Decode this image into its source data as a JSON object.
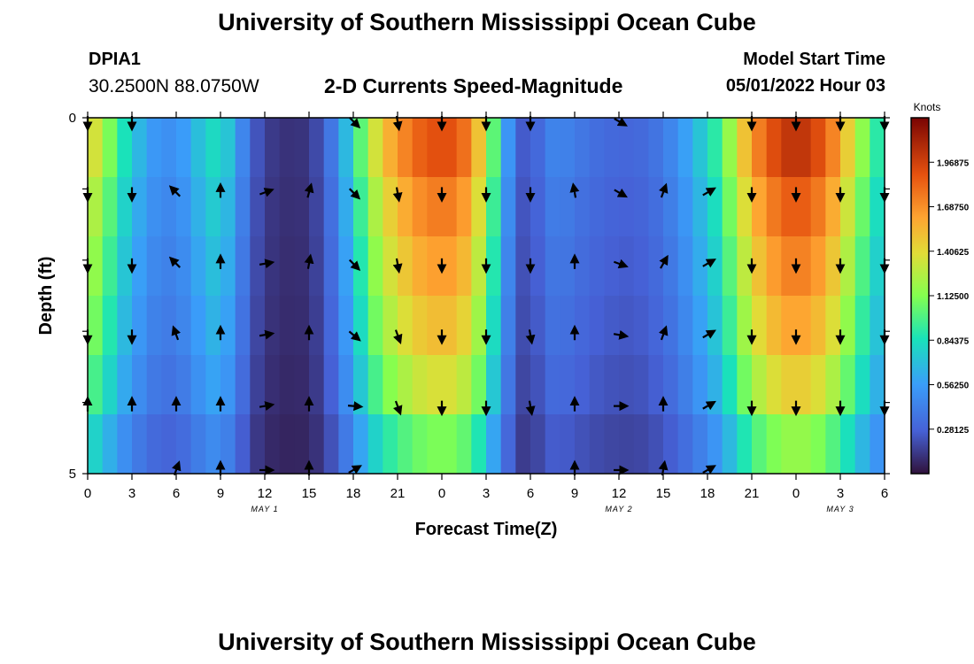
{
  "page": {
    "title": "University of Southern Mississippi Ocean Cube",
    "station": "DPIA1",
    "coords": "30.2500N  88.0750W",
    "subtitle": "2-D Currents Speed-Magnitude",
    "model_start_label": "Model Start Time",
    "model_start_value": "05/01/2022 Hour 03",
    "footer_title": "University of Southern Mississippi Ocean Cube"
  },
  "chart_data": {
    "type": "heatmap",
    "title": "2-D Currents Speed-Magnitude",
    "xlabel": "Forecast Time(Z)",
    "ylabel": "Depth (ft)",
    "x_ticks": [
      "0",
      "3",
      "6",
      "9",
      "12",
      "15",
      "18",
      "21",
      "0",
      "3",
      "6",
      "9",
      "12",
      "15",
      "18",
      "21",
      "0",
      "3",
      "6"
    ],
    "x_range_hours": [
      0,
      54
    ],
    "date_labels": [
      {
        "label": "MAY 1",
        "hour": 12
      },
      {
        "label": "MAY 2",
        "hour": 36
      },
      {
        "label": "MAY 3",
        "hour": 51
      }
    ],
    "y_ticks": [
      "0",
      "5"
    ],
    "ylim": [
      0,
      5
    ],
    "colorbar": {
      "unit": "Knots",
      "min": 0.0,
      "max": 2.25,
      "ticks": [
        "1.96875",
        "1.68750",
        "1.40625",
        "1.12500",
        "0.84375",
        "0.56250",
        "0.28125"
      ],
      "tick_values": [
        1.96875,
        1.6875,
        1.40625,
        1.125,
        0.84375,
        0.5625,
        0.28125
      ]
    },
    "speed_profile": {
      "hours": [
        0,
        1,
        2,
        3,
        4,
        5,
        6,
        7,
        8,
        9,
        10,
        11,
        12,
        13,
        14,
        15,
        16,
        17,
        18,
        19,
        20,
        21,
        22,
        23,
        24,
        25,
        26,
        27,
        28,
        29,
        30,
        31,
        32,
        33,
        34,
        35,
        36,
        37,
        38,
        39,
        40,
        41,
        42,
        43,
        44,
        45,
        46,
        47,
        48,
        49,
        50,
        51,
        52,
        53,
        54
      ],
      "surface_knots": [
        1.45,
        1.25,
        0.95,
        0.75,
        0.58,
        0.5,
        0.5,
        0.62,
        0.78,
        0.85,
        0.6,
        0.3,
        0.15,
        0.12,
        0.1,
        0.13,
        0.25,
        0.5,
        0.85,
        1.2,
        1.5,
        1.65,
        1.8,
        1.88,
        1.92,
        1.88,
        1.7,
        1.3,
        0.75,
        0.3,
        0.2,
        0.42,
        0.45,
        0.4,
        0.35,
        0.32,
        0.3,
        0.3,
        0.33,
        0.4,
        0.5,
        0.65,
        0.8,
        1.0,
        1.35,
        1.65,
        1.85,
        1.98,
        2.05,
        1.98,
        1.85,
        1.6,
        1.3,
        1.0,
        0.8
      ]
    },
    "depth_factor": [
      1.0,
      0.92,
      0.86,
      0.8,
      0.72,
      0.58
    ],
    "arrow_times": [
      0,
      3,
      6,
      9,
      12,
      15,
      18,
      21,
      24,
      27,
      30,
      33,
      36,
      39,
      42,
      45,
      48,
      51,
      54
    ],
    "arrow_depths": [
      0.05,
      1.05,
      2.05,
      3.05,
      4.05,
      4.95
    ],
    "arrow_dirs_deg": [
      [
        180,
        180,
        null,
        null,
        null,
        null,
        135,
        170,
        180,
        180,
        180,
        null,
        120,
        null,
        null,
        180,
        180,
        180,
        180
      ],
      [
        180,
        180,
        315,
        0,
        70,
        15,
        135,
        170,
        180,
        180,
        180,
        350,
        120,
        20,
        60,
        180,
        180,
        180,
        180
      ],
      [
        180,
        180,
        315,
        0,
        80,
        10,
        135,
        170,
        180,
        180,
        180,
        0,
        110,
        30,
        60,
        180,
        180,
        180,
        180
      ],
      [
        180,
        180,
        340,
        0,
        80,
        0,
        130,
        160,
        180,
        180,
        170,
        0,
        100,
        20,
        60,
        180,
        180,
        180,
        180
      ],
      [
        0,
        0,
        0,
        0,
        80,
        0,
        95,
        160,
        180,
        180,
        170,
        0,
        90,
        0,
        60,
        180,
        180,
        180,
        180
      ],
      [
        null,
        null,
        20,
        0,
        90,
        0,
        60,
        null,
        null,
        null,
        null,
        0,
        90,
        10,
        60,
        null,
        null,
        null,
        null
      ]
    ]
  }
}
